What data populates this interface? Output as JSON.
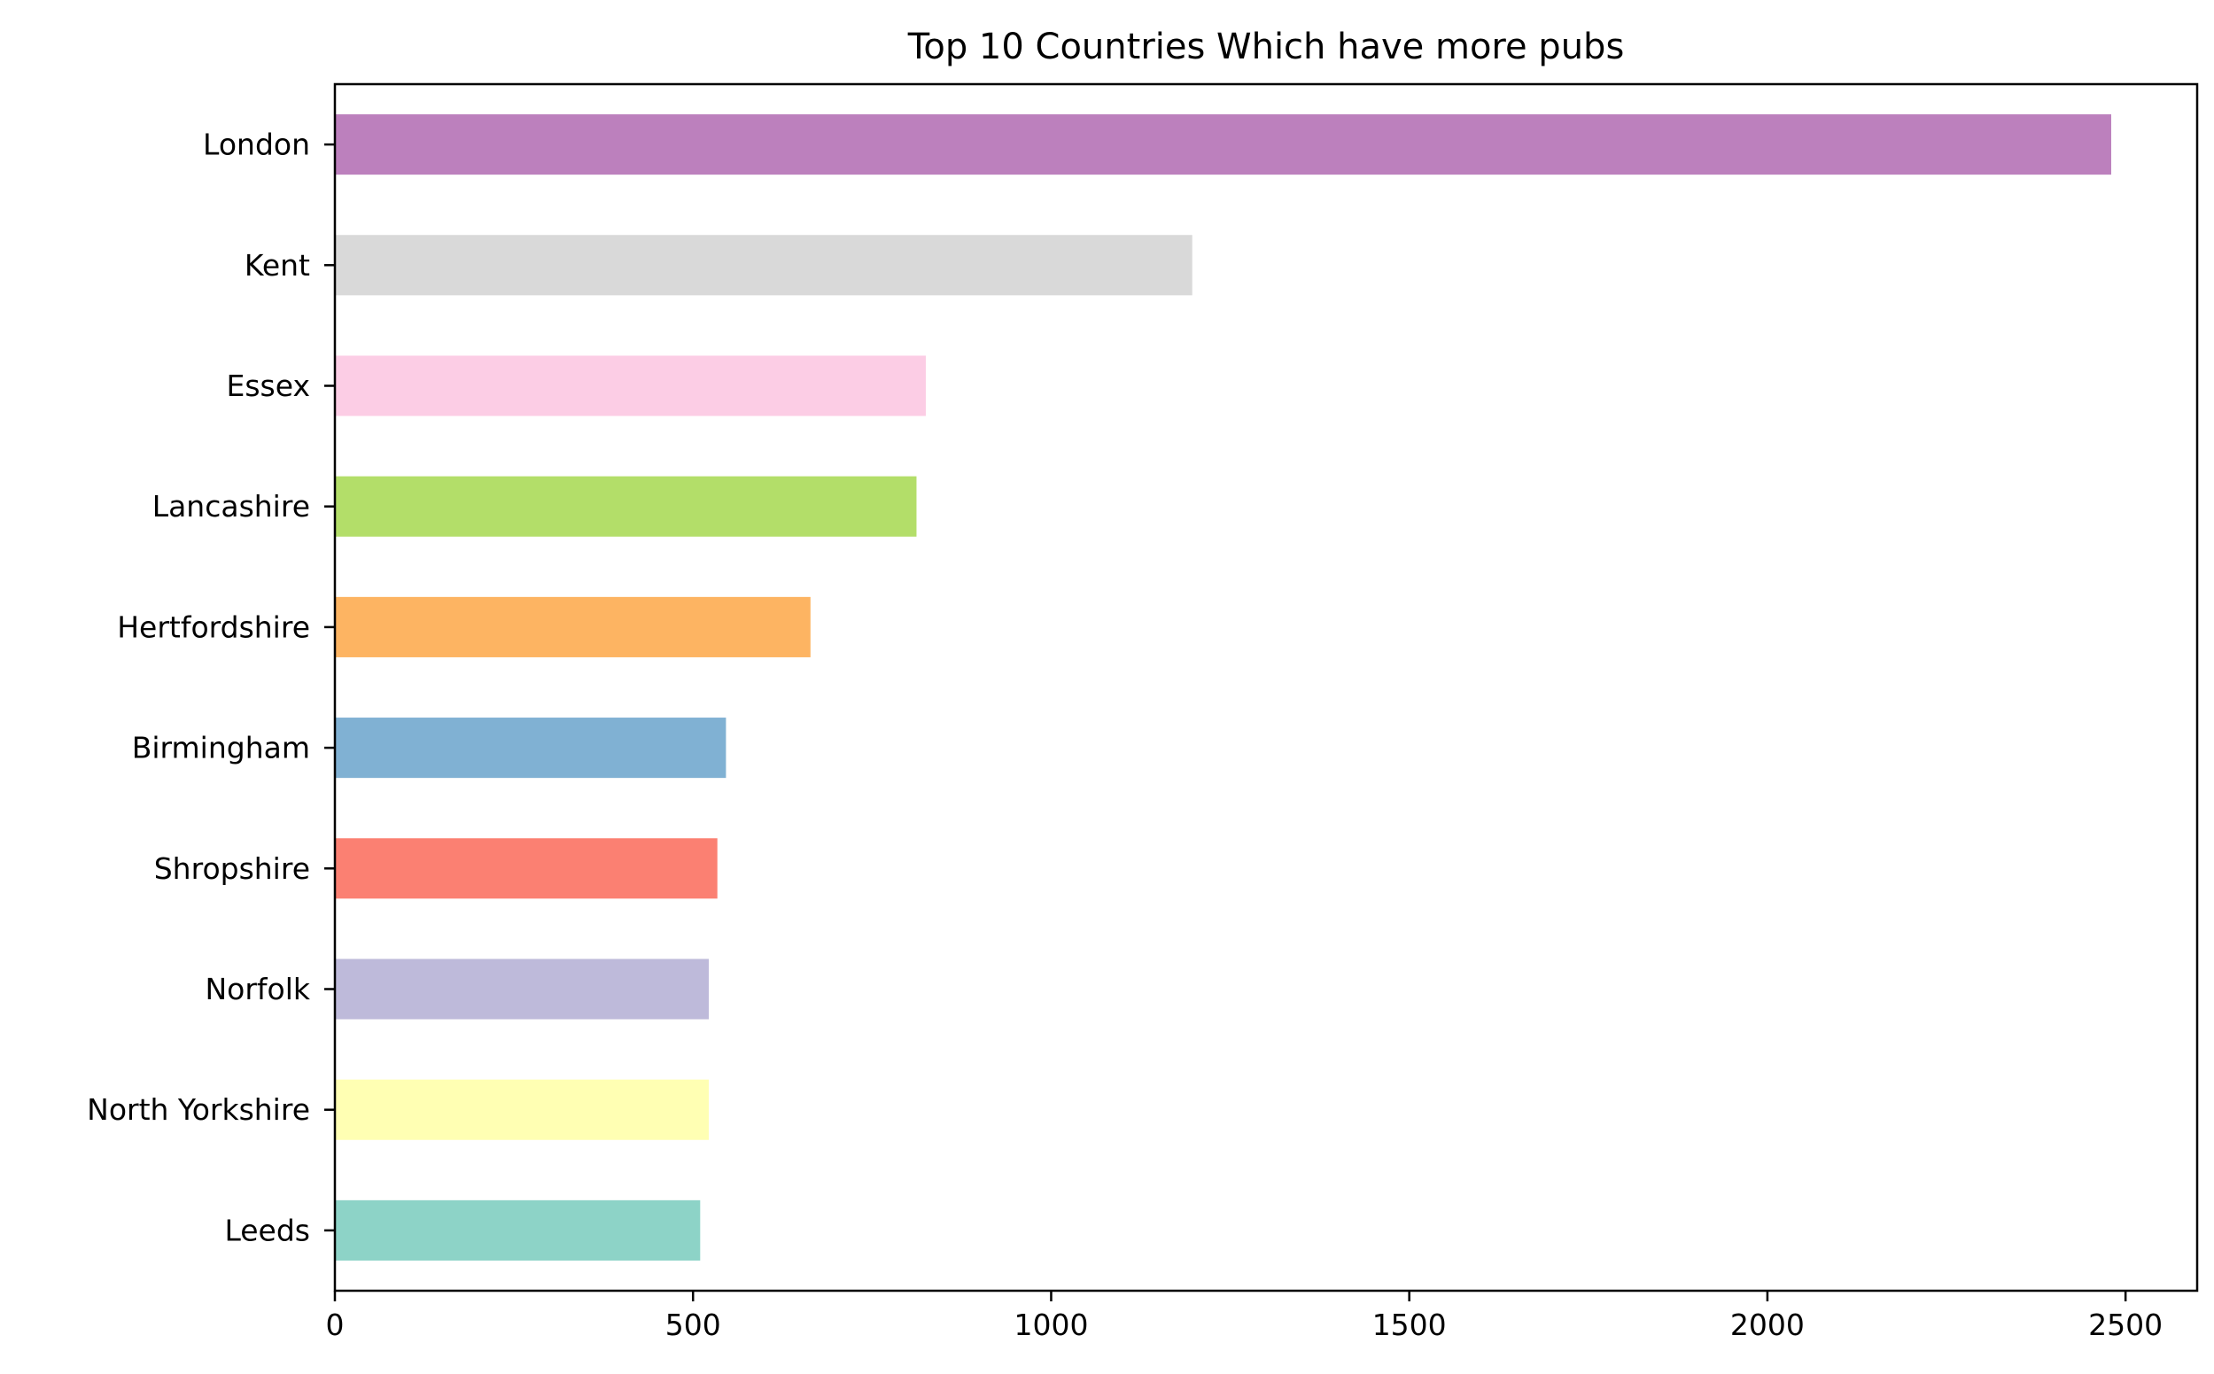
{
  "chart_data": {
    "type": "bar",
    "orientation": "horizontal",
    "title": "Top 10 Countries Which have more pubs",
    "xlabel": "",
    "ylabel": "",
    "categories": [
      "Leeds",
      "North Yorkshire",
      "Norfolk",
      "Shropshire",
      "Birmingham",
      "Hertfordshire",
      "Lancashire",
      "Essex",
      "Kent",
      "London"
    ],
    "values": [
      510,
      522,
      522,
      534,
      546,
      664,
      812,
      825,
      1197,
      2480
    ],
    "colors": [
      "#8dd3c7",
      "#ffffb3",
      "#bebada",
      "#fb8072",
      "#80b1d3",
      "#fdb462",
      "#b3de69",
      "#fccde5",
      "#d9d9d9",
      "#bc80bd"
    ],
    "xlim": [
      0,
      2600
    ],
    "xticks": [
      0,
      500,
      1000,
      1500,
      2000,
      2500
    ],
    "xtick_labels": [
      "0",
      "500",
      "1000",
      "1500",
      "2000",
      "2500"
    ],
    "grid": false,
    "legend": "none"
  }
}
